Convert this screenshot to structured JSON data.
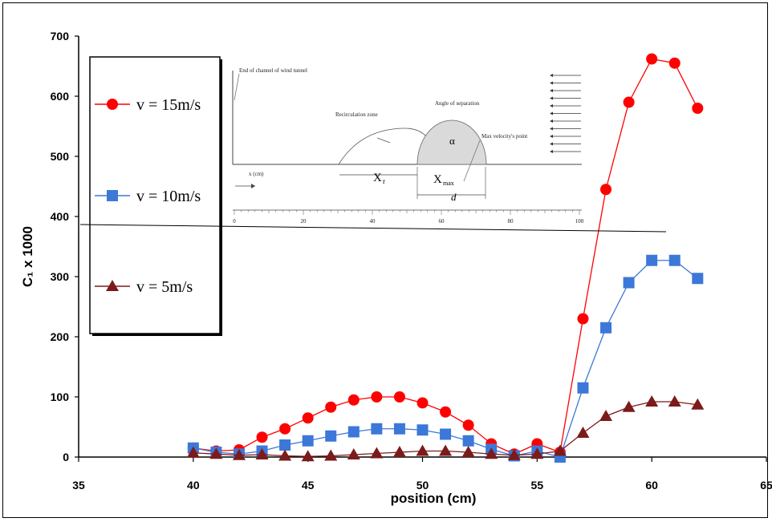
{
  "chart_data": {
    "type": "line",
    "xlabel": "position (cm)",
    "ylabel": "C₁ x 1000",
    "xlim": [
      35,
      65
    ],
    "ylim": [
      0,
      700
    ],
    "x_ticks": [
      "35",
      "40",
      "45",
      "50",
      "55",
      "60",
      "65"
    ],
    "y_ticks": [
      "0",
      "100",
      "200",
      "300",
      "400",
      "500",
      "600",
      "700"
    ],
    "grid": false,
    "legend_position": "top-left",
    "x": [
      40,
      41,
      42,
      43,
      44,
      45,
      46,
      47,
      48,
      49,
      50,
      51,
      52,
      53,
      54,
      55,
      56,
      57,
      58,
      59,
      60,
      61,
      62
    ],
    "series": [
      {
        "name": "v = 15m/s",
        "color": "#ff0000",
        "marker": "circle",
        "values": [
          15,
          10,
          12,
          33,
          47,
          65,
          83,
          95,
          100,
          100,
          90,
          75,
          53,
          22,
          5,
          22,
          8,
          230,
          445,
          590,
          662,
          655,
          580
        ]
      },
      {
        "name": "v = 10m/s",
        "color": "#3c78d8",
        "marker": "square",
        "values": [
          15,
          8,
          5,
          10,
          20,
          27,
          35,
          42,
          47,
          47,
          45,
          38,
          27,
          13,
          2,
          10,
          0,
          115,
          215,
          290,
          327,
          327,
          297
        ]
      },
      {
        "name": "v = 5m/s",
        "color": "#7b1b1b",
        "marker": "triangle",
        "values": [
          7,
          5,
          3,
          4,
          2,
          1,
          2,
          4,
          6,
          8,
          10,
          10,
          8,
          5,
          3,
          5,
          10,
          40,
          68,
          83,
          92,
          92,
          87
        ]
      }
    ]
  },
  "inset": {
    "labels": {
      "end_channel": "End of channel of wind tunnel",
      "recirculation": "Recirculation zone",
      "angle_sep": "Angle of separation",
      "max_velocity": "Max velocity's point",
      "x_axis": "x (cm)",
      "alpha": "α",
      "xr": "X",
      "xr_sub": "r",
      "xmax": "X",
      "xmax_sub": "max",
      "d": "d"
    },
    "ticks": [
      "0",
      "20",
      "40",
      "60",
      "80",
      "100"
    ]
  }
}
